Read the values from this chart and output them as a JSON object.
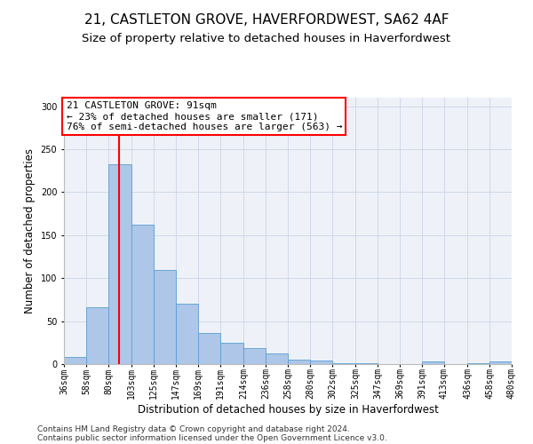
{
  "title": "21, CASTLETON GROVE, HAVERFORDWEST, SA62 4AF",
  "subtitle": "Size of property relative to detached houses in Haverfordwest",
  "xlabel": "Distribution of detached houses by size in Haverfordwest",
  "ylabel": "Number of detached properties",
  "footer_line1": "Contains HM Land Registry data © Crown copyright and database right 2024.",
  "footer_line2": "Contains public sector information licensed under the Open Government Licence v3.0.",
  "annotation_line1": "21 CASTLETON GROVE: 91sqm",
  "annotation_line2": "← 23% of detached houses are smaller (171)",
  "annotation_line3": "76% of semi-detached houses are larger (563) →",
  "bar_color": "#aec6e8",
  "bar_edge_color": "#5a9fd4",
  "red_line_x": 91,
  "bin_edges": [
    36,
    58,
    80,
    103,
    125,
    147,
    169,
    191,
    214,
    236,
    258,
    280,
    302,
    325,
    347,
    369,
    391,
    413,
    436,
    458,
    480
  ],
  "bar_heights": [
    8,
    66,
    232,
    162,
    110,
    70,
    36,
    25,
    19,
    12,
    5,
    4,
    1,
    1,
    0,
    0,
    3,
    0,
    1,
    3
  ],
  "ylim": [
    0,
    310
  ],
  "yticks": [
    0,
    50,
    100,
    150,
    200,
    250,
    300
  ],
  "grid_color": "#d0d8e8",
  "bg_color": "#eef2f8",
  "annotation_box_color": "white",
  "annotation_box_edge": "red",
  "title_fontsize": 11,
  "subtitle_fontsize": 9.5,
  "axis_label_fontsize": 8.5,
  "tick_fontsize": 7,
  "annotation_fontsize": 8,
  "footer_fontsize": 6.5
}
